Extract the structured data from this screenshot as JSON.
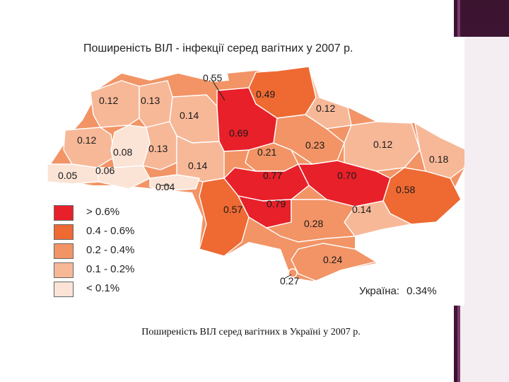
{
  "title": "Поширеність ВІЛ - інфекції серед вагітних у 2007 р.",
  "caption": "Поширеність ВІЛ серед вагітних в Україні у 2007 р.",
  "summary": {
    "label": "Україна:",
    "value": "0.34%"
  },
  "colors": {
    "gt_0_6": "#e8202a",
    "c_0_4_0_6": "#ee6a32",
    "c_0_2_0_4": "#f29466",
    "c_0_1_0_2": "#f7b898",
    "lt_0_1": "#fbe3d6",
    "frame_dark": "#4a1a3d",
    "frame_accent": "#7a3a6a"
  },
  "legend": [
    {
      "label": "> 0.6%",
      "color": "#e8202a"
    },
    {
      "label": "0.4 - 0.6%",
      "color": "#ee6a32"
    },
    {
      "label": "0.2 - 0.4%",
      "color": "#f29466"
    },
    {
      "label": "0.1 - 0.2%",
      "color": "#f7b898"
    },
    {
      "label": "< 0.1%",
      "color": "#fbe3d6"
    }
  ],
  "regions": [
    {
      "label": "0.12",
      "class": "0.1 - 0.2%"
    },
    {
      "label": "0.13",
      "class": "0.1 - 0.2%"
    },
    {
      "label": "0.14",
      "class": "0.1 - 0.2%"
    },
    {
      "label": "0.55",
      "class": "0.4 - 0.6%"
    },
    {
      "label": "0.69",
      "class": "> 0.6%"
    },
    {
      "label": "0.49",
      "class": "0.4 - 0.6%"
    },
    {
      "label": "0.12",
      "class": "0.1 - 0.2%"
    },
    {
      "label": "0.12",
      "class": "0.1 - 0.2%"
    },
    {
      "label": "0.08",
      "class": "< 0.1%"
    },
    {
      "label": "0.13",
      "class": "0.1 - 0.2%"
    },
    {
      "label": "0.21",
      "class": "0.2 - 0.4%"
    },
    {
      "label": "0.23",
      "class": "0.2 - 0.4%"
    },
    {
      "label": "0.12",
      "class": "0.1 - 0.2%"
    },
    {
      "label": "0.18",
      "class": "0.1 - 0.2%"
    },
    {
      "label": "0.05",
      "class": "< 0.1%"
    },
    {
      "label": "0.06",
      "class": "< 0.1%"
    },
    {
      "label": "0.14",
      "class": "0.1 - 0.2%"
    },
    {
      "label": "0.77",
      "class": "> 0.6%"
    },
    {
      "label": "0.70",
      "class": "> 0.6%"
    },
    {
      "label": "0.58",
      "class": "0.4 - 0.6%"
    },
    {
      "label": "0.04",
      "class": "< 0.1%"
    },
    {
      "label": "0.57",
      "class": "0.4 - 0.6%"
    },
    {
      "label": "0.79",
      "class": "> 0.6%"
    },
    {
      "label": "0.14",
      "class": "0.1 - 0.2%"
    },
    {
      "label": "0.28",
      "class": "0.2 - 0.4%"
    },
    {
      "label": "0.24",
      "class": "0.2 - 0.4%"
    },
    {
      "label": "0.27",
      "class": "0.2 - 0.4%"
    }
  ]
}
